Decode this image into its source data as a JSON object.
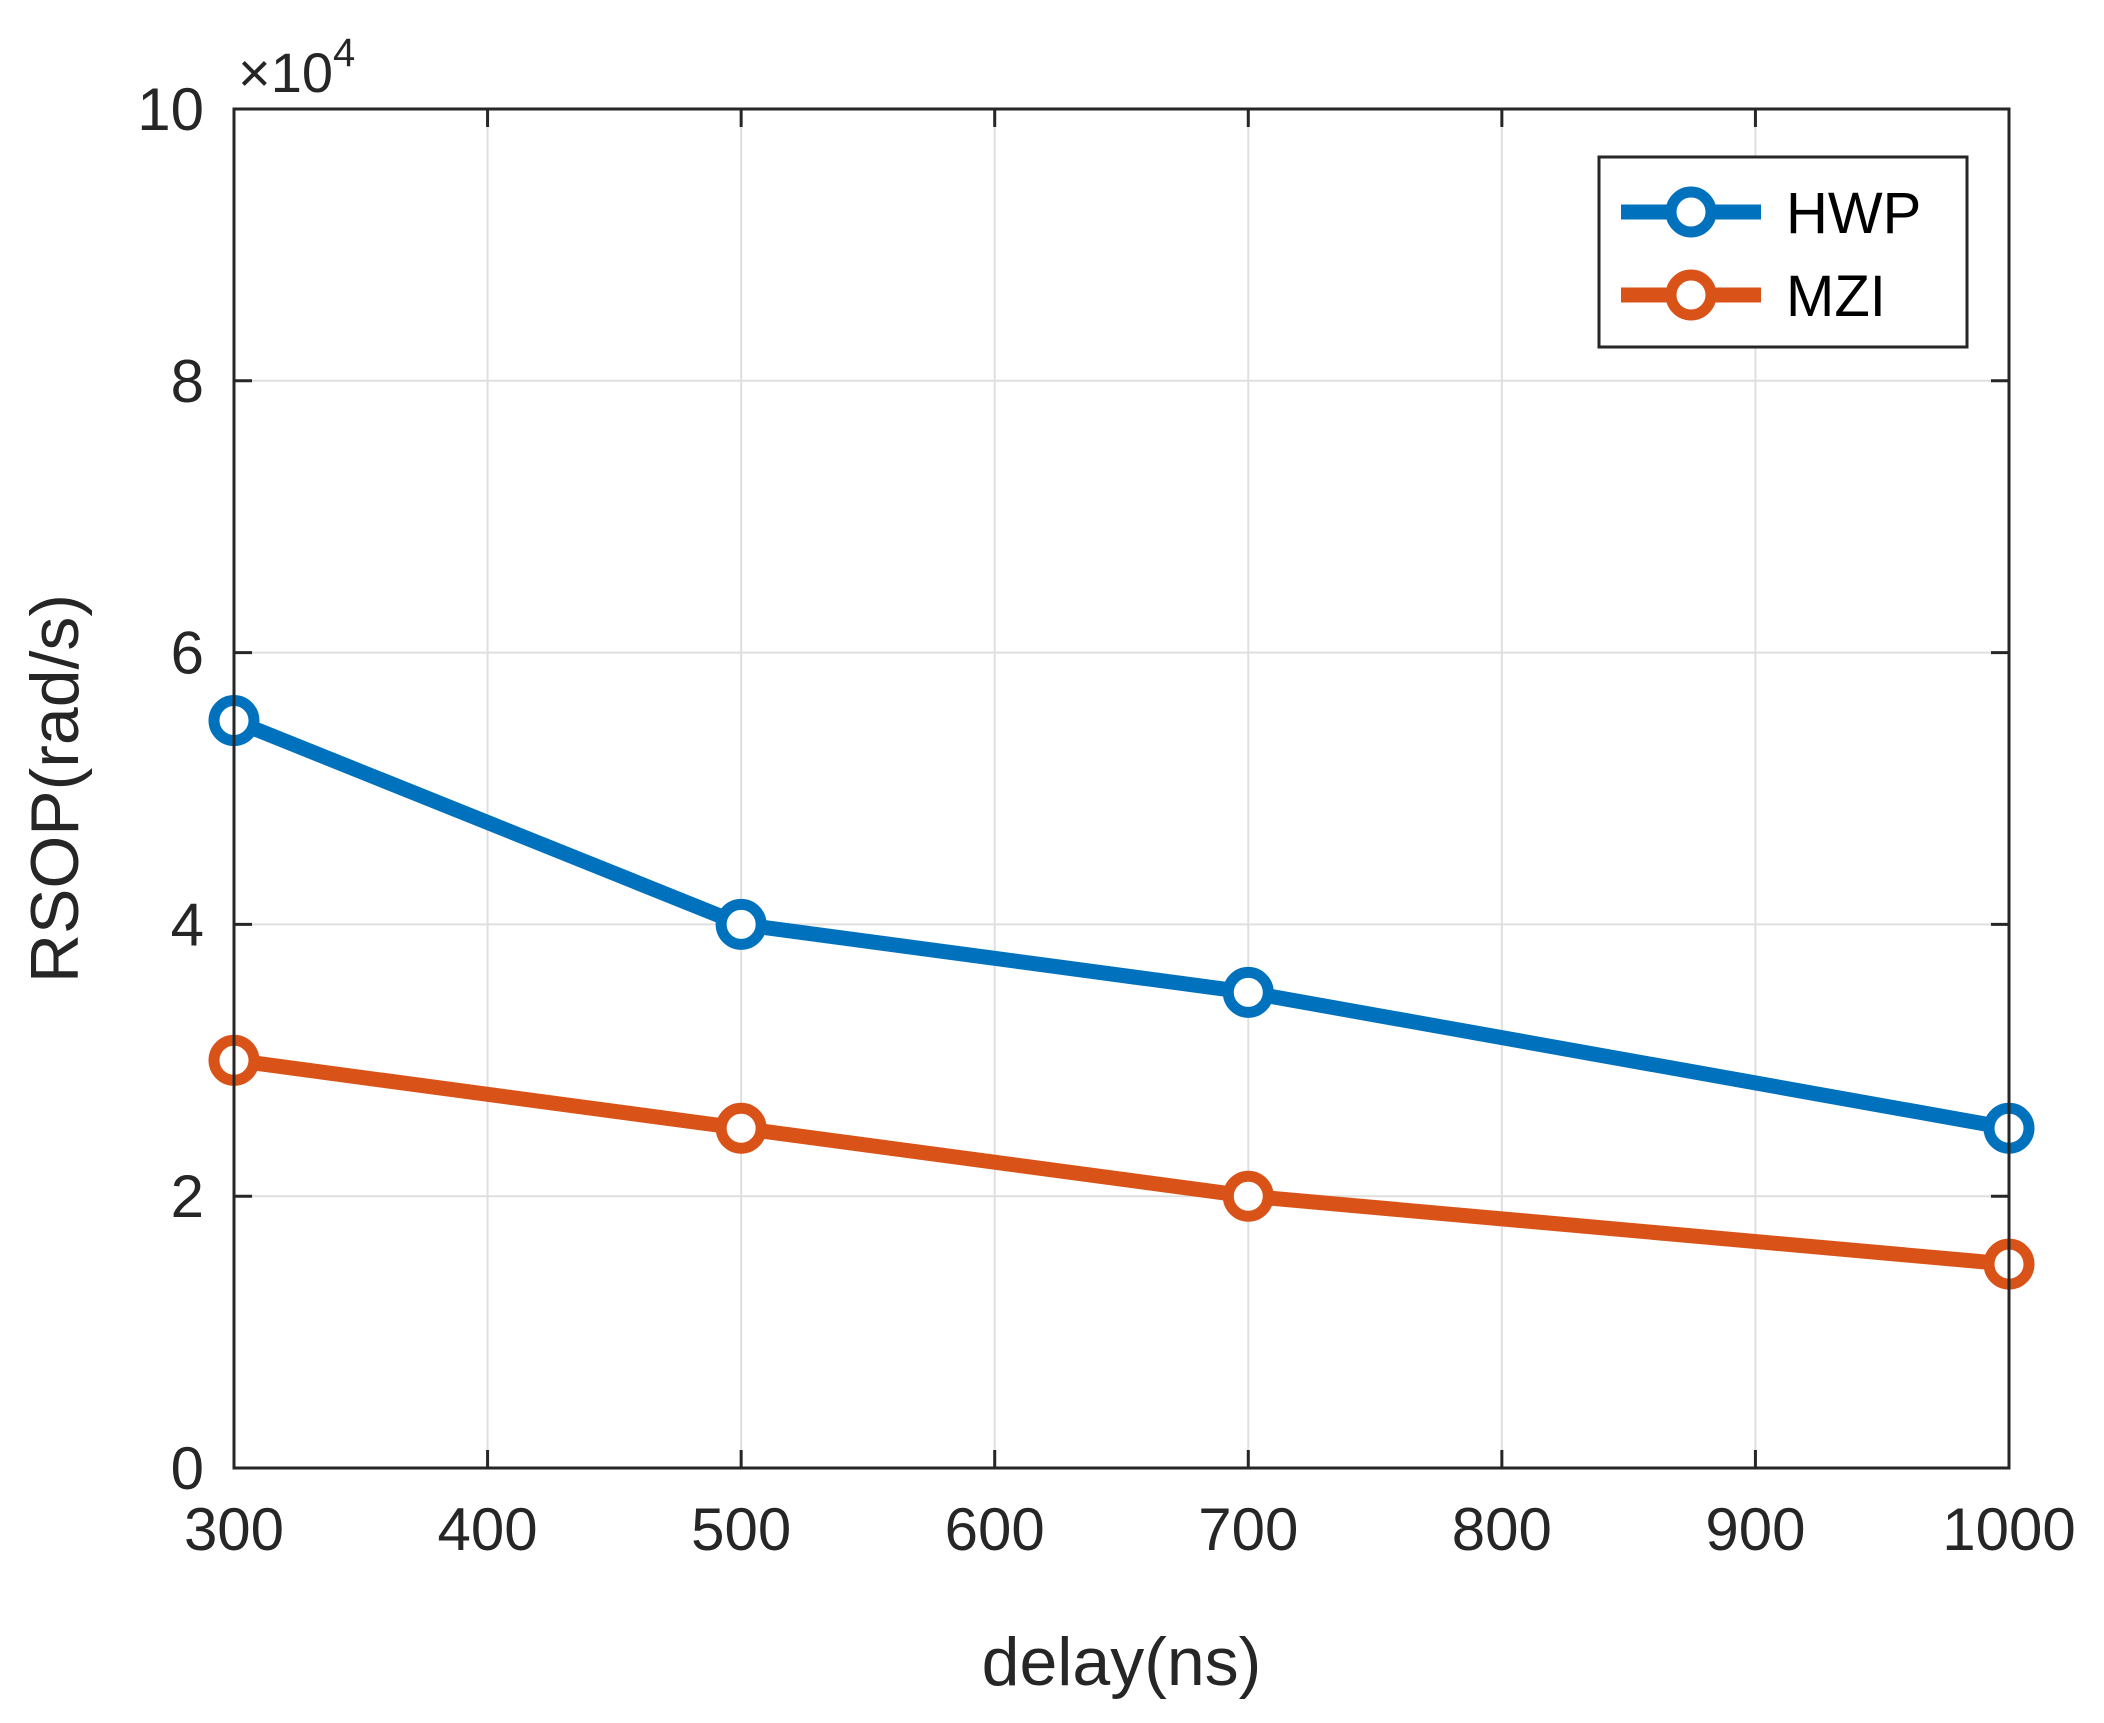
{
  "chart_data": {
    "type": "line",
    "title": "",
    "xlabel": "delay(ns)",
    "ylabel": "RSOP(rad/s)",
    "y_multiplier_base": "×10",
    "y_multiplier_exponent": "4",
    "xlim": [
      300,
      1000
    ],
    "ylim": [
      0,
      10
    ],
    "xticks": [
      300,
      400,
      500,
      600,
      700,
      800,
      900,
      1000
    ],
    "yticks": [
      0,
      2,
      4,
      6,
      8,
      10
    ],
    "grid": true,
    "legend_position": "top-right",
    "series": [
      {
        "name": "HWP",
        "color": "#0072BD",
        "x": [
          300,
          500,
          700,
          1000
        ],
        "y": [
          5.5,
          4.0,
          3.5,
          2.5
        ]
      },
      {
        "name": "MZI",
        "color": "#D95319",
        "x": [
          300,
          500,
          700,
          1000
        ],
        "y": [
          3.0,
          2.5,
          2.0,
          1.5
        ]
      }
    ]
  }
}
